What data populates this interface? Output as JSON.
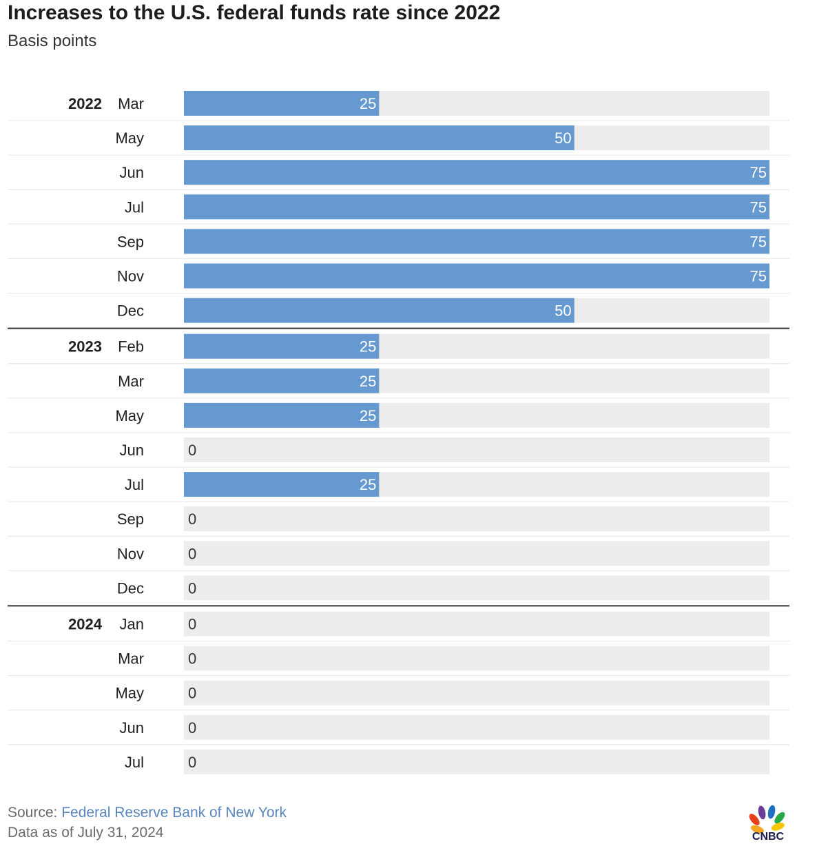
{
  "header": {
    "title": "Increases to the U.S. federal funds rate since 2022",
    "subtitle": "Basis points"
  },
  "footer": {
    "source_label": "Source: ",
    "source_name": "Federal Reserve Bank of New York",
    "as_of": "Data as of July 31, 2024"
  },
  "logo": {
    "text": "CNBC"
  },
  "colors": {
    "bar": "#6699d0",
    "track": "#ededed",
    "divider": "#333333",
    "link": "#5a86bd"
  },
  "chart_data": {
    "type": "bar",
    "orientation": "horizontal",
    "title": "Increases to the U.S. federal funds rate since 2022",
    "subtitle": "Basis points",
    "xlabel": "",
    "ylabel": "",
    "xlim": [
      0,
      75
    ],
    "grid": false,
    "legend": "none",
    "groups": [
      {
        "year": "2022",
        "rows": [
          {
            "month": "Mar",
            "value": 25
          },
          {
            "month": "May",
            "value": 50
          },
          {
            "month": "Jun",
            "value": 75
          },
          {
            "month": "Jul",
            "value": 75
          },
          {
            "month": "Sep",
            "value": 75
          },
          {
            "month": "Nov",
            "value": 75
          },
          {
            "month": "Dec",
            "value": 50
          }
        ]
      },
      {
        "year": "2023",
        "rows": [
          {
            "month": "Feb",
            "value": 25
          },
          {
            "month": "Mar",
            "value": 25
          },
          {
            "month": "May",
            "value": 25
          },
          {
            "month": "Jun",
            "value": 0
          },
          {
            "month": "Jul",
            "value": 25
          },
          {
            "month": "Sep",
            "value": 0
          },
          {
            "month": "Nov",
            "value": 0
          },
          {
            "month": "Dec",
            "value": 0
          }
        ]
      },
      {
        "year": "2024",
        "rows": [
          {
            "month": "Jan",
            "value": 0
          },
          {
            "month": "Mar",
            "value": 0
          },
          {
            "month": "May",
            "value": 0
          },
          {
            "month": "Jun",
            "value": 0
          },
          {
            "month": "Jul",
            "value": 0
          }
        ]
      }
    ]
  }
}
